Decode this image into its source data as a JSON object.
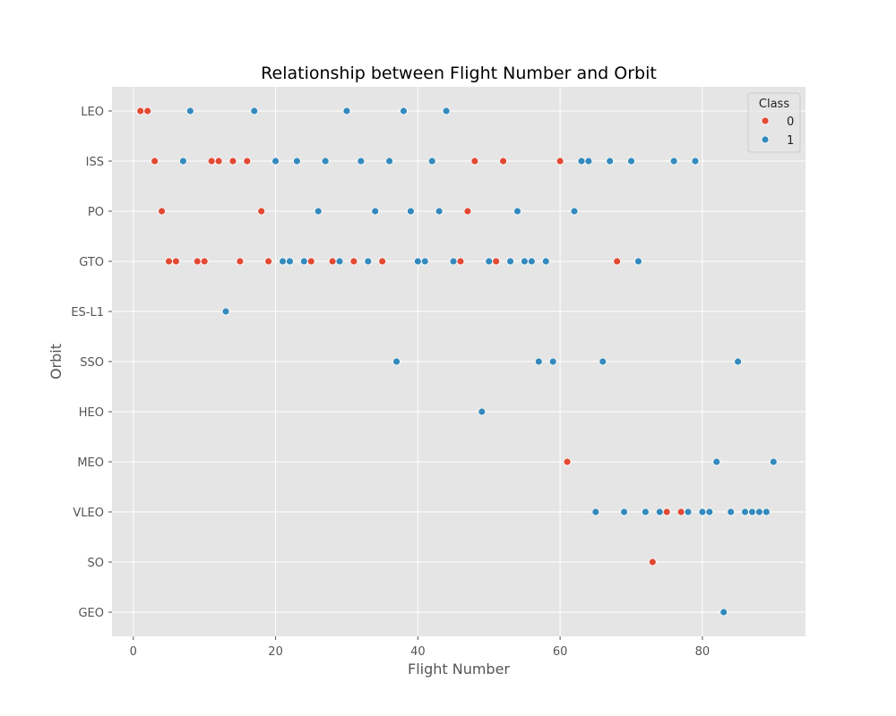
{
  "chart_data": {
    "type": "scatter",
    "title": "Relationship between Flight Number and Orbit",
    "xlabel": "Flight Number",
    "ylabel": "Orbit",
    "xlim": [
      -3,
      94.5
    ],
    "xticks": [
      0,
      20,
      40,
      60,
      80
    ],
    "categories": [
      "LEO",
      "ISS",
      "PO",
      "GTO",
      "ES-L1",
      "SSO",
      "HEO",
      "MEO",
      "VLEO",
      "SO",
      "GEO"
    ],
    "grid": true,
    "legend": {
      "title": "Class",
      "placement": "top-right",
      "entries": [
        "0",
        "1"
      ]
    },
    "colors": {
      "0": "#e24a33",
      "1": "#348abd",
      "background": "#e5e5e5",
      "grid": "#ffffff"
    },
    "series": [
      {
        "name": "0",
        "points": [
          {
            "x": 1,
            "y": "LEO"
          },
          {
            "x": 2,
            "y": "LEO"
          },
          {
            "x": 3,
            "y": "ISS"
          },
          {
            "x": 11,
            "y": "ISS"
          },
          {
            "x": 12,
            "y": "ISS"
          },
          {
            "x": 14,
            "y": "ISS"
          },
          {
            "x": 16,
            "y": "ISS"
          },
          {
            "x": 48,
            "y": "ISS"
          },
          {
            "x": 52,
            "y": "ISS"
          },
          {
            "x": 60,
            "y": "ISS"
          },
          {
            "x": 4,
            "y": "PO"
          },
          {
            "x": 18,
            "y": "PO"
          },
          {
            "x": 47,
            "y": "PO"
          },
          {
            "x": 5,
            "y": "GTO"
          },
          {
            "x": 6,
            "y": "GTO"
          },
          {
            "x": 9,
            "y": "GTO"
          },
          {
            "x": 10,
            "y": "GTO"
          },
          {
            "x": 15,
            "y": "GTO"
          },
          {
            "x": 19,
            "y": "GTO"
          },
          {
            "x": 25,
            "y": "GTO"
          },
          {
            "x": 28,
            "y": "GTO"
          },
          {
            "x": 31,
            "y": "GTO"
          },
          {
            "x": 35,
            "y": "GTO"
          },
          {
            "x": 46,
            "y": "GTO"
          },
          {
            "x": 51,
            "y": "GTO"
          },
          {
            "x": 68,
            "y": "GTO"
          },
          {
            "x": 61,
            "y": "MEO"
          },
          {
            "x": 75,
            "y": "VLEO"
          },
          {
            "x": 77,
            "y": "VLEO"
          },
          {
            "x": 73,
            "y": "SO"
          }
        ]
      },
      {
        "name": "1",
        "points": [
          {
            "x": 8,
            "y": "LEO"
          },
          {
            "x": 17,
            "y": "LEO"
          },
          {
            "x": 30,
            "y": "LEO"
          },
          {
            "x": 38,
            "y": "LEO"
          },
          {
            "x": 44,
            "y": "LEO"
          },
          {
            "x": 7,
            "y": "ISS"
          },
          {
            "x": 20,
            "y": "ISS"
          },
          {
            "x": 23,
            "y": "ISS"
          },
          {
            "x": 27,
            "y": "ISS"
          },
          {
            "x": 32,
            "y": "ISS"
          },
          {
            "x": 36,
            "y": "ISS"
          },
          {
            "x": 42,
            "y": "ISS"
          },
          {
            "x": 63,
            "y": "ISS"
          },
          {
            "x": 64,
            "y": "ISS"
          },
          {
            "x": 67,
            "y": "ISS"
          },
          {
            "x": 70,
            "y": "ISS"
          },
          {
            "x": 76,
            "y": "ISS"
          },
          {
            "x": 79,
            "y": "ISS"
          },
          {
            "x": 26,
            "y": "PO"
          },
          {
            "x": 34,
            "y": "PO"
          },
          {
            "x": 39,
            "y": "PO"
          },
          {
            "x": 43,
            "y": "PO"
          },
          {
            "x": 54,
            "y": "PO"
          },
          {
            "x": 62,
            "y": "PO"
          },
          {
            "x": 21,
            "y": "GTO"
          },
          {
            "x": 22,
            "y": "GTO"
          },
          {
            "x": 24,
            "y": "GTO"
          },
          {
            "x": 29,
            "y": "GTO"
          },
          {
            "x": 33,
            "y": "GTO"
          },
          {
            "x": 40,
            "y": "GTO"
          },
          {
            "x": 41,
            "y": "GTO"
          },
          {
            "x": 45,
            "y": "GTO"
          },
          {
            "x": 50,
            "y": "GTO"
          },
          {
            "x": 53,
            "y": "GTO"
          },
          {
            "x": 55,
            "y": "GTO"
          },
          {
            "x": 56,
            "y": "GTO"
          },
          {
            "x": 58,
            "y": "GTO"
          },
          {
            "x": 71,
            "y": "GTO"
          },
          {
            "x": 13,
            "y": "ES-L1"
          },
          {
            "x": 37,
            "y": "SSO"
          },
          {
            "x": 57,
            "y": "SSO"
          },
          {
            "x": 59,
            "y": "SSO"
          },
          {
            "x": 66,
            "y": "SSO"
          },
          {
            "x": 85,
            "y": "SSO"
          },
          {
            "x": 49,
            "y": "HEO"
          },
          {
            "x": 82,
            "y": "MEO"
          },
          {
            "x": 90,
            "y": "MEO"
          },
          {
            "x": 65,
            "y": "VLEO"
          },
          {
            "x": 69,
            "y": "VLEO"
          },
          {
            "x": 72,
            "y": "VLEO"
          },
          {
            "x": 74,
            "y": "VLEO"
          },
          {
            "x": 78,
            "y": "VLEO"
          },
          {
            "x": 80,
            "y": "VLEO"
          },
          {
            "x": 81,
            "y": "VLEO"
          },
          {
            "x": 84,
            "y": "VLEO"
          },
          {
            "x": 86,
            "y": "VLEO"
          },
          {
            "x": 87,
            "y": "VLEO"
          },
          {
            "x": 88,
            "y": "VLEO"
          },
          {
            "x": 89,
            "y": "VLEO"
          },
          {
            "x": 83,
            "y": "GEO"
          }
        ]
      }
    ]
  }
}
